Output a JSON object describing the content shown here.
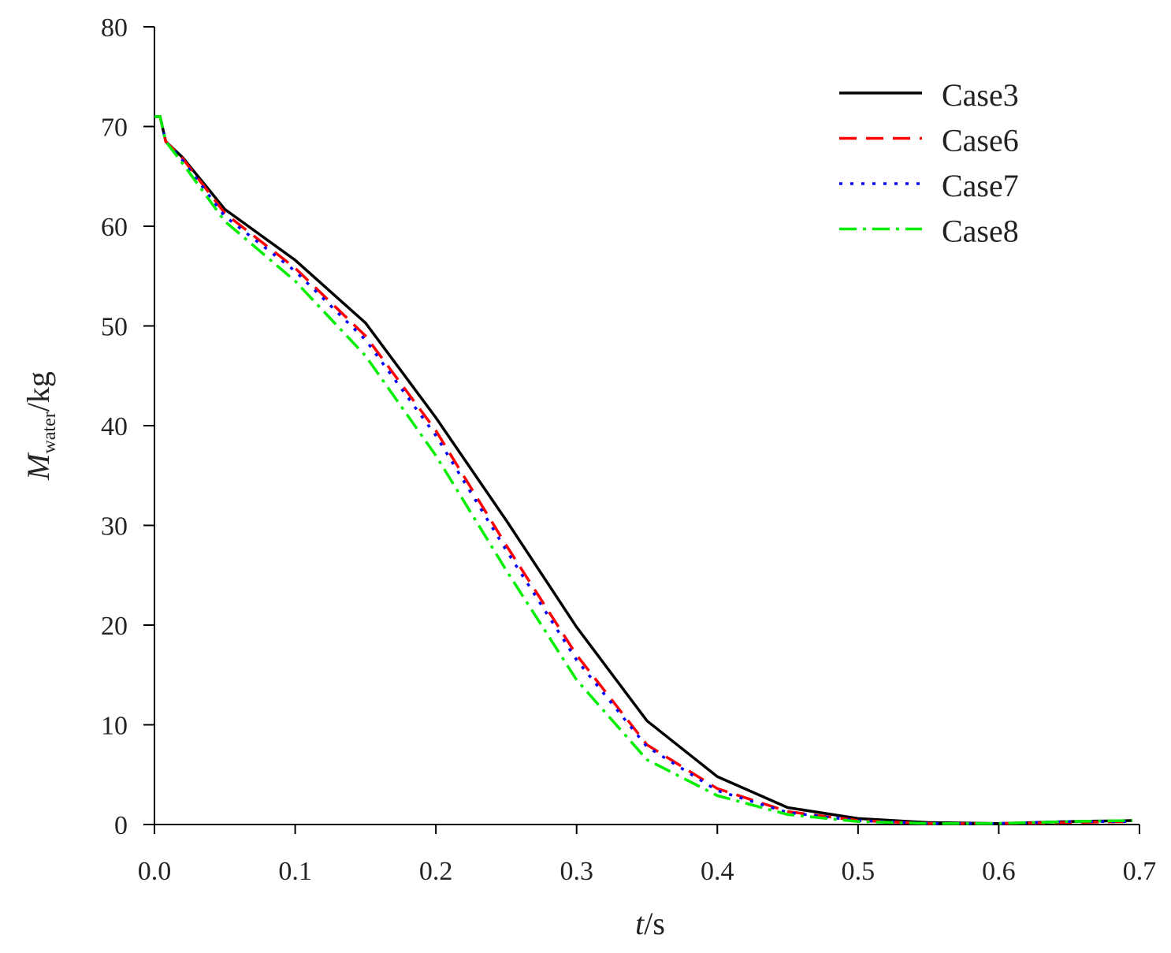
{
  "chart_data": {
    "type": "line",
    "xlabel": {
      "symbol": "t",
      "unit": "/s"
    },
    "ylabel": {
      "symbol": "M",
      "subscript": "water",
      "unit": "/kg"
    },
    "x": [
      0,
      0.004,
      0.008,
      0.02,
      0.05,
      0.1,
      0.15,
      0.2,
      0.25,
      0.3,
      0.35,
      0.4,
      0.45,
      0.5,
      0.55,
      0.6,
      0.65,
      0.695
    ],
    "series": [
      {
        "name": "Case3",
        "color": "#000000",
        "style": "solid",
        "values": [
          71,
          71,
          68.5,
          66.9,
          61.7,
          56.6,
          50.3,
          40.8,
          30.5,
          19.8,
          10.4,
          4.8,
          1.7,
          0.6,
          0.2,
          0.1,
          0.3,
          0.4
        ]
      },
      {
        "name": "Case6",
        "color": "#ff0000",
        "style": "dashed",
        "values": [
          71,
          71,
          68.5,
          66.8,
          61.3,
          55.8,
          49,
          39.5,
          28,
          17,
          8,
          3.6,
          1.3,
          0.4,
          0.1,
          0.1,
          0.2,
          0.3
        ]
      },
      {
        "name": "Case7",
        "color": "#0000ff",
        "style": "dotted",
        "values": [
          71,
          71,
          68.5,
          66.6,
          61,
          55.5,
          48.6,
          39,
          27.5,
          16.5,
          7.8,
          3.4,
          1.2,
          0.4,
          0.1,
          0.1,
          0.3,
          0.3
        ]
      },
      {
        "name": "Case8",
        "color": "#00ee00",
        "style": "dashdot",
        "values": [
          71,
          71,
          68.5,
          66.3,
          60.5,
          54.5,
          47,
          37,
          25.5,
          14.5,
          6.5,
          2.9,
          1,
          0.3,
          0.1,
          0.1,
          0.3,
          0.4
        ]
      }
    ],
    "xlim": [
      0,
      0.7
    ],
    "xticks": [
      {
        "value": 0,
        "label": "0.0"
      },
      0.1,
      0.2,
      0.3,
      0.4,
      0.5,
      0.6,
      0.7
    ],
    "ylim": [
      0,
      80
    ],
    "yticks": [
      0,
      10,
      20,
      30,
      40,
      50,
      60,
      70,
      80
    ],
    "legend": "upper right"
  }
}
